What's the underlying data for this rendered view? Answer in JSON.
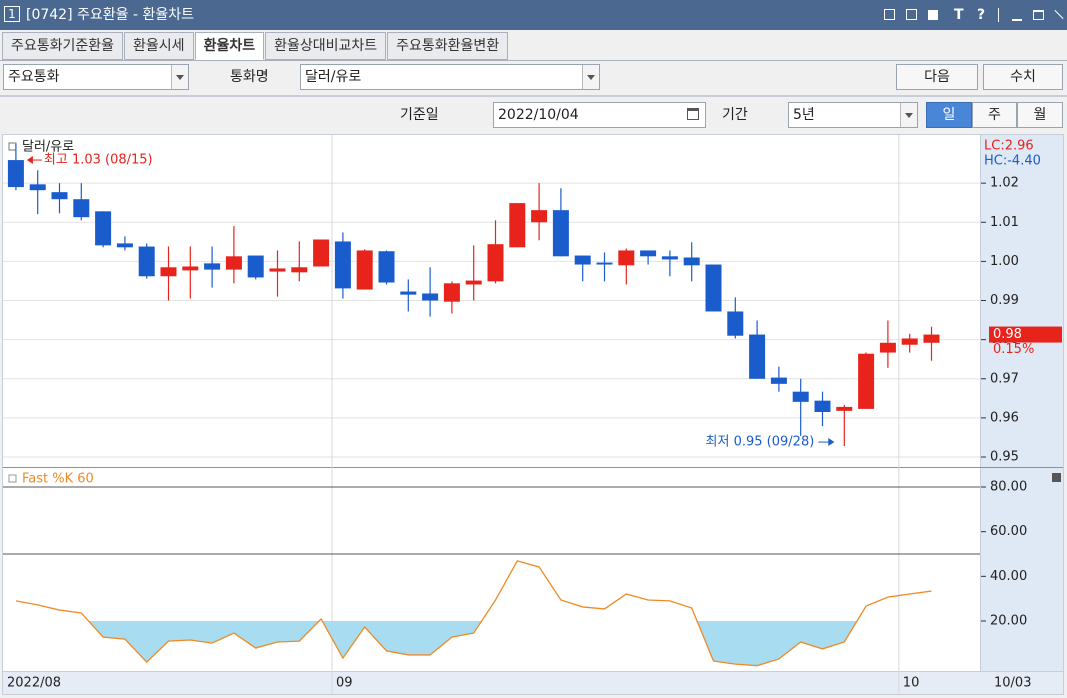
{
  "window": {
    "number": "1",
    "title": "[0742] 주요환율 - 환율차트",
    "icons": [
      "T",
      "?"
    ]
  },
  "tabs": [
    "주요통화기준환율",
    "환율시세",
    "환율차트",
    "환율상대비교차트",
    "주요통화환율변환"
  ],
  "active_tab": 2,
  "controls": {
    "market": "주요통화",
    "currency_label": "통화명",
    "currency": "달러/유로",
    "next": "다음",
    "values": "수치",
    "date_label": "기준일",
    "date": "2022/10/04",
    "period_label": "기간",
    "period": "5년",
    "day": "일",
    "week": "주",
    "month": "월"
  },
  "chart_data": [
    {
      "type": "candlestick",
      "title": "달러/유로",
      "categories": [
        "2022/08",
        null,
        null,
        null,
        null,
        null,
        null,
        null,
        null,
        null,
        null,
        null,
        null,
        null,
        null,
        "09",
        null,
        null,
        null,
        null,
        null,
        null,
        null,
        null,
        null,
        null,
        null,
        null,
        null,
        null,
        null,
        null,
        null,
        null,
        null,
        null,
        null,
        null,
        null,
        null,
        null,
        "10",
        null
      ],
      "open": [
        1.0259,
        1.0197,
        1.0177,
        1.0159,
        1.0128,
        1.0046,
        1.0038,
        0.9962,
        0.9977,
        0.9995,
        0.9979,
        1.0015,
        0.9974,
        0.9972,
        0.9987,
        1.0051,
        0.9928,
        1.0026,
        0.9923,
        0.9918,
        0.9897,
        0.9941,
        0.9949,
        1.0036,
        1.01,
        1.0131,
        1.0015,
        0.9997,
        0.999,
        1.0028,
        1.0013,
        1.001,
        0.9992,
        0.9872,
        0.9813,
        0.9703,
        0.9667,
        0.9644,
        0.9618,
        0.9623,
        0.9767,
        0.9787,
        0.9792
      ],
      "high": [
        1.03,
        1.0233,
        1.02,
        1.02,
        1.0128,
        1.0064,
        1.0046,
        1.0038,
        1.0038,
        1.0038,
        1.009,
        1.0015,
        1.0028,
        1.0051,
        1.0056,
        1.0074,
        1.0031,
        1.0028,
        0.9954,
        0.9985,
        0.9949,
        1.0041,
        1.0105,
        1.0149,
        1.02,
        1.0187,
        1.0015,
        1.0023,
        1.0033,
        1.0028,
        1.0028,
        1.0049,
        0.9992,
        0.9908,
        0.9849,
        0.9731,
        0.97,
        0.9667,
        0.9633,
        0.9767,
        0.9849,
        0.9815,
        0.9833
      ],
      "low": [
        1.0182,
        1.0121,
        1.0123,
        1.0105,
        1.0036,
        1.0028,
        0.9956,
        0.99,
        0.9905,
        0.9933,
        0.9944,
        0.9954,
        0.991,
        0.9949,
        0.9987,
        0.9905,
        0.9928,
        0.9941,
        0.9872,
        0.9859,
        0.9867,
        0.99,
        0.9944,
        1.0036,
        1.0054,
        1.0013,
        0.9949,
        0.9949,
        0.9941,
        0.9992,
        0.9962,
        0.9949,
        0.9872,
        0.9803,
        0.97,
        0.9667,
        0.9554,
        0.9579,
        0.9528,
        0.9623,
        0.9728,
        0.9767,
        0.9746
      ],
      "close": [
        1.019,
        1.0182,
        1.0159,
        1.0113,
        1.0041,
        1.0036,
        0.9962,
        0.9985,
        0.9987,
        0.9979,
        1.0013,
        0.9959,
        0.9982,
        0.9985,
        1.0056,
        0.9931,
        1.0028,
        0.9946,
        0.9915,
        0.99,
        0.9944,
        0.9951,
        1.0044,
        1.0149,
        1.0131,
        1.0013,
        0.9992,
        0.9992,
        1.0028,
        1.0013,
        1.0005,
        0.999,
        0.9872,
        0.981,
        0.97,
        0.9687,
        0.9641,
        0.9615,
        0.9628,
        0.9764,
        0.9792,
        0.9803,
        0.9813
      ],
      "up_color": "#e8231c",
      "down_color": "#1a5ccc",
      "ylim": [
        0.9477,
        1.0318
      ],
      "yticks": [
        0.95,
        0.96,
        0.97,
        0.98,
        0.99,
        {
          "value": 1,
          "label": "1.00"
        },
        1.01,
        1.02
      ],
      "grid": true,
      "annotations": {
        "high": "최고 1.03 (08/15)",
        "low": "최저 0.95 (09/28)",
        "lc": "LC:2.96",
        "hc": "HC:-4.40",
        "price": "0.98",
        "change": "0.15%"
      },
      "last_date": "10/03"
    },
    {
      "type": "line",
      "title": "Fast %K 60",
      "values": [
        29.0,
        27.2,
        24.9,
        23.6,
        12.8,
        11.9,
        1.6,
        11.0,
        11.5,
        10.1,
        14.6,
        7.9,
        10.6,
        11.0,
        20.9,
        3.4,
        17.3,
        6.6,
        4.8,
        4.8,
        12.8,
        14.6,
        29.4,
        46.9,
        44.2,
        29.4,
        26.3,
        25.4,
        32.1,
        29.4,
        29.0,
        25.8,
        2.1,
        0.7,
        0.0,
        3.0,
        10.6,
        7.5,
        10.6,
        26.7,
        30.7,
        32.1,
        33.4
      ],
      "color": "#f08a24",
      "fill_color": "#a8dcf0",
      "fill_below": 20,
      "ylim": [
        -1.94,
        88.06
      ],
      "yticks": [
        {
          "value": 20,
          "label": "20.00"
        },
        {
          "value": 40,
          "label": "40.00"
        },
        {
          "value": 60,
          "label": "60.00"
        },
        {
          "value": 80,
          "label": "80.00"
        }
      ],
      "hlines": [
        80,
        50
      ],
      "grid": false
    }
  ]
}
